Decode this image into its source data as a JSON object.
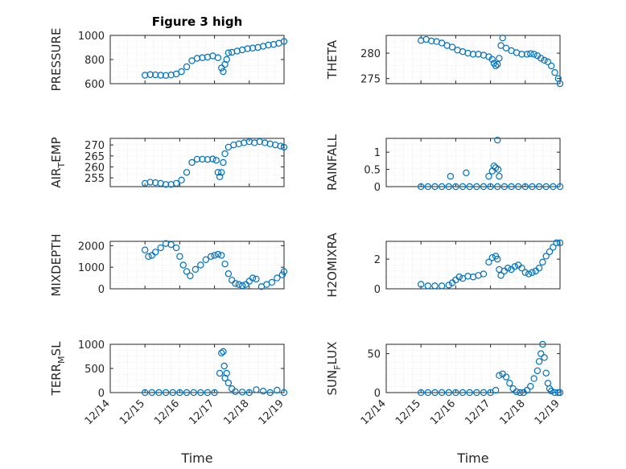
{
  "figure": {
    "title": "Figure 3 high",
    "time_label": "Time",
    "x_ticks": [
      "12/14",
      "12/15",
      "12/16",
      "12/17",
      "12/18",
      "12/19"
    ],
    "marker_color": "#0072bd"
  },
  "chart_data": [
    {
      "type": "scatter",
      "title": "Figure 3 high",
      "ylabel": "PRESSURE",
      "xlim": [
        0,
        5
      ],
      "ylim": [
        600,
        1000
      ],
      "yticks": [
        "600",
        "800",
        "1000"
      ],
      "x_ticklabels": false,
      "x": [
        1.0,
        1.15,
        1.3,
        1.45,
        1.6,
        1.75,
        1.9,
        2.05,
        2.2,
        2.35,
        2.5,
        2.65,
        2.8,
        2.95,
        3.1,
        3.2,
        3.25,
        3.3,
        3.35,
        3.4,
        3.5,
        3.65,
        3.8,
        3.95,
        4.1,
        4.25,
        4.4,
        4.55,
        4.7,
        4.85,
        5.0
      ],
      "y": [
        670,
        675,
        673,
        670,
        668,
        672,
        680,
        700,
        740,
        790,
        810,
        815,
        820,
        830,
        815,
        730,
        700,
        760,
        800,
        855,
        860,
        870,
        880,
        890,
        895,
        900,
        910,
        920,
        925,
        935,
        950
      ]
    },
    {
      "type": "scatter",
      "ylabel": "THETA",
      "xlim": [
        1,
        5
      ],
      "ylim": [
        274,
        283.5
      ],
      "yticks": [
        "275",
        "280"
      ],
      "x_ticklabels": false,
      "x": [
        1.0,
        1.15,
        1.3,
        1.45,
        1.6,
        1.75,
        1.9,
        2.05,
        2.2,
        2.35,
        2.5,
        2.65,
        2.8,
        2.95,
        3.05,
        3.1,
        3.15,
        3.2,
        3.25,
        3.3,
        3.35,
        3.45,
        3.6,
        3.75,
        3.9,
        4.05,
        4.15,
        4.25,
        4.35,
        4.45,
        4.55,
        4.65,
        4.75,
        4.85,
        4.95,
        5.0
      ],
      "y": [
        282.5,
        282.7,
        282.4,
        282.3,
        282.0,
        281.5,
        281.2,
        280.6,
        280.3,
        280.0,
        279.8,
        279.8,
        279.6,
        279.3,
        278.8,
        278.0,
        277.5,
        277.8,
        279.0,
        281.5,
        283.0,
        281.0,
        280.5,
        280.1,
        279.8,
        279.8,
        279.9,
        279.8,
        279.5,
        279.0,
        278.6,
        278.3,
        277.5,
        276.2,
        275.0,
        274.0
      ]
    },
    {
      "type": "scatter",
      "ylabel_main": "AIR",
      "ylabel_sub": "T",
      "ylabel_rest": "EMP",
      "xlim": [
        0,
        5
      ],
      "ylim": [
        251,
        273
      ],
      "yticks": [
        "255",
        "260",
        "265",
        "270"
      ],
      "x_ticklabels": false,
      "x": [
        1.0,
        1.15,
        1.3,
        1.45,
        1.6,
        1.75,
        1.9,
        2.05,
        2.2,
        2.35,
        2.5,
        2.65,
        2.8,
        2.95,
        3.05,
        3.1,
        3.15,
        3.2,
        3.25,
        3.3,
        3.4,
        3.55,
        3.7,
        3.85,
        4.0,
        4.15,
        4.3,
        4.45,
        4.6,
        4.75,
        4.9,
        5.0
      ],
      "y": [
        252.5,
        253.0,
        252.8,
        252.5,
        252.0,
        252.0,
        252.5,
        254.0,
        257.5,
        262.0,
        263.5,
        263.5,
        263.4,
        263.6,
        263.0,
        257.5,
        255.5,
        257.5,
        262.0,
        266.0,
        269.0,
        270.0,
        270.5,
        271.0,
        271.5,
        271.0,
        271.5,
        271.0,
        270.5,
        270.0,
        269.5,
        269.0
      ]
    },
    {
      "type": "scatter",
      "ylabel": "RAINFALL",
      "xlim": [
        1,
        5
      ],
      "ylim": [
        0,
        1.4
      ],
      "yticks": [
        "0",
        "0.5",
        "1"
      ],
      "x_ticklabels": false,
      "x": [
        1.0,
        1.2,
        1.4,
        1.6,
        1.8,
        2.0,
        2.2,
        2.4,
        2.6,
        2.8,
        3.0,
        3.2,
        3.4,
        3.6,
        3.8,
        4.0,
        4.2,
        4.4,
        4.6,
        4.8,
        5.0,
        1.85,
        2.3,
        2.95,
        3.05,
        3.1,
        3.15,
        3.2,
        3.22,
        3.25
      ],
      "y": [
        0,
        0,
        0,
        0,
        0,
        0,
        0,
        0,
        0,
        0,
        0,
        0,
        0,
        0,
        0,
        0,
        0,
        0,
        0,
        0,
        0,
        0.3,
        0.4,
        0.3,
        0.45,
        0.6,
        0.55,
        1.35,
        0.5,
        0.3
      ]
    },
    {
      "type": "scatter",
      "ylabel": "MIXDEPTH",
      "xlim": [
        0,
        5
      ],
      "ylim": [
        0,
        2200
      ],
      "yticks": [
        "0",
        "1000",
        "2000"
      ],
      "x_ticklabels": false,
      "x": [
        1.0,
        1.1,
        1.2,
        1.3,
        1.45,
        1.6,
        1.75,
        1.9,
        2.0,
        2.1,
        2.2,
        2.3,
        2.45,
        2.6,
        2.75,
        2.9,
        3.0,
        3.1,
        3.2,
        3.3,
        3.4,
        3.5,
        3.6,
        3.7,
        3.8,
        3.9,
        4.0,
        4.1,
        4.2,
        4.35,
        4.5,
        4.65,
        4.8,
        4.95,
        5.0
      ],
      "y": [
        1800,
        1500,
        1550,
        1700,
        1900,
        2100,
        2050,
        1900,
        1500,
        1100,
        800,
        600,
        900,
        1100,
        1350,
        1500,
        1550,
        1600,
        1550,
        1150,
        700,
        400,
        250,
        200,
        150,
        200,
        350,
        500,
        450,
        100,
        200,
        300,
        500,
        650,
        800
      ]
    },
    {
      "type": "scatter",
      "ylabel": "H2OMIXRA",
      "xlim": [
        1,
        5
      ],
      "ylim": [
        0,
        3.2
      ],
      "yticks": [
        "0",
        "2"
      ],
      "x_ticklabels": false,
      "x": [
        1.0,
        1.2,
        1.4,
        1.6,
        1.8,
        1.9,
        2.0,
        2.1,
        2.2,
        2.35,
        2.5,
        2.65,
        2.8,
        2.95,
        3.05,
        3.15,
        3.2,
        3.25,
        3.3,
        3.4,
        3.5,
        3.6,
        3.7,
        3.8,
        3.9,
        4.0,
        4.1,
        4.2,
        4.3,
        4.4,
        4.5,
        4.6,
        4.7,
        4.8,
        4.9,
        5.0
      ],
      "y": [
        0.3,
        0.2,
        0.2,
        0.2,
        0.25,
        0.4,
        0.6,
        0.8,
        0.7,
        0.85,
        0.8,
        0.9,
        1.0,
        1.8,
        2.1,
        2.2,
        2.0,
        1.3,
        0.9,
        1.2,
        1.4,
        1.3,
        1.5,
        1.6,
        1.4,
        1.1,
        1.0,
        1.1,
        1.2,
        1.4,
        1.8,
        2.2,
        2.5,
        2.8,
        3.1,
        3.1
      ]
    },
    {
      "type": "scatter",
      "ylabel_main": "TERR",
      "ylabel_sub": "M",
      "ylabel_rest": "SL",
      "xlim": [
        0,
        5
      ],
      "ylim": [
        0,
        1000
      ],
      "yticks": [
        "0",
        "500",
        "1000"
      ],
      "x_ticklabels": true,
      "x": [
        1.0,
        1.2,
        1.4,
        1.6,
        1.8,
        2.0,
        2.2,
        2.4,
        2.6,
        2.8,
        3.0,
        3.15,
        3.2,
        3.25,
        3.28,
        3.3,
        3.35,
        3.4,
        3.5,
        3.6,
        3.8,
        4.0,
        4.2,
        4.4,
        4.6,
        4.8,
        5.0
      ],
      "y": [
        0,
        0,
        0,
        0,
        0,
        0,
        0,
        0,
        0,
        0,
        0,
        400,
        820,
        850,
        550,
        300,
        400,
        200,
        80,
        20,
        10,
        0,
        60,
        30,
        0,
        50,
        0
      ]
    },
    {
      "type": "scatter",
      "ylabel_main": "SUN",
      "ylabel_sub": "F",
      "ylabel_rest": "LUX",
      "xlim": [
        1,
        5
      ],
      "ylim": [
        0,
        62
      ],
      "yticks": [
        "0",
        "50"
      ],
      "x_ticklabels": true,
      "x": [
        1.0,
        1.2,
        1.4,
        1.6,
        1.8,
        2.0,
        2.2,
        2.4,
        2.6,
        2.8,
        3.0,
        3.15,
        3.25,
        3.35,
        3.45,
        3.55,
        3.65,
        3.75,
        3.85,
        3.95,
        4.05,
        4.15,
        4.25,
        4.35,
        4.4,
        4.45,
        4.5,
        4.55,
        4.6,
        4.65,
        4.7,
        4.75,
        4.85,
        4.95,
        5.0
      ],
      "y": [
        0,
        0,
        0,
        0,
        0,
        0,
        0,
        0,
        0,
        0,
        0,
        3,
        22,
        24,
        20,
        12,
        5,
        1,
        0,
        0,
        3,
        8,
        18,
        28,
        40,
        50,
        62,
        45,
        25,
        12,
        5,
        2,
        0,
        0,
        0
      ]
    }
  ]
}
